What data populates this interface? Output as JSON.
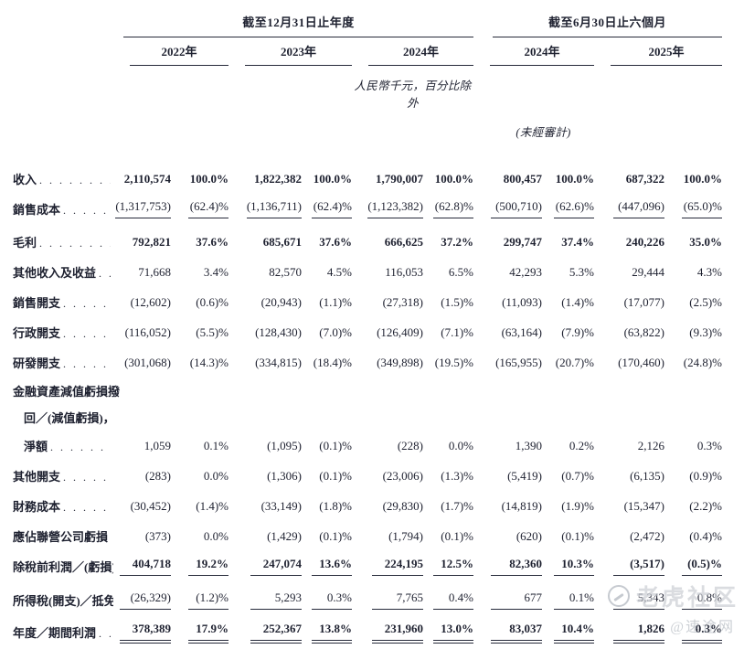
{
  "header": {
    "group1": {
      "title": "截至12月31日止年度",
      "years": [
        "2022年",
        "2023年",
        "2024年"
      ]
    },
    "group2": {
      "title": "截至6月30日止六個月",
      "years": [
        "2024年",
        "2025年"
      ]
    },
    "unit_note": "人民幣千元，百分比除外",
    "unaudited_note": "(未經審計)"
  },
  "table": {
    "leader_dots": ". . . . . . . . . . . . . . . . . . . . . . . . . . . . . . . . . . . . . . . .",
    "rows": [
      {
        "label_lines": [
          "收入"
        ],
        "bold": true,
        "underline": "none",
        "gap": 0,
        "values": [
          "2,110,574",
          "100.0%",
          "1,822,382",
          "100.0%",
          "1,790,007",
          "100.0%",
          "800,457",
          "100.0%",
          "687,322",
          "100.0%"
        ]
      },
      {
        "label_lines": [
          "銷售成本"
        ],
        "bold": false,
        "underline": "single",
        "gap": 0,
        "values": [
          "(1,317,753)",
          "(62.4)%",
          "(1,136,711)",
          "(62.4)%",
          "(1,123,382)",
          "(62.8)%",
          "(500,710)",
          "(62.6)%",
          "(447,096)",
          "(65.0)%"
        ]
      },
      {
        "label_lines": [
          "毛利"
        ],
        "bold": true,
        "underline": "none",
        "gap": 3,
        "values": [
          "792,821",
          "37.6%",
          "685,671",
          "37.6%",
          "666,625",
          "37.2%",
          "299,747",
          "37.4%",
          "240,226",
          "35.0%"
        ]
      },
      {
        "label_lines": [
          "其他收入及收益"
        ],
        "bold": false,
        "underline": "none",
        "gap": 0,
        "values": [
          "71,668",
          "3.4%",
          "82,570",
          "4.5%",
          "116,053",
          "6.5%",
          "42,293",
          "5.3%",
          "29,444",
          "4.3%"
        ]
      },
      {
        "label_lines": [
          "銷售開支"
        ],
        "bold": false,
        "underline": "none",
        "gap": 0,
        "values": [
          "(12,602)",
          "(0.6)%",
          "(20,943)",
          "(1.1)%",
          "(27,318)",
          "(1.5)%",
          "(11,093)",
          "(1.4)%",
          "(17,077)",
          "(2.5)%"
        ]
      },
      {
        "label_lines": [
          "行政開支"
        ],
        "bold": false,
        "underline": "none",
        "gap": 0,
        "values": [
          "(116,052)",
          "(5.5)%",
          "(128,430)",
          "(7.0)%",
          "(126,409)",
          "(7.1)%",
          "(63,164)",
          "(7.9)%",
          "(63,822)",
          "(9.3)%"
        ]
      },
      {
        "label_lines": [
          "研發開支"
        ],
        "bold": false,
        "underline": "none",
        "gap": 0,
        "values": [
          "(301,068)",
          "(14.3)%",
          "(334,815)",
          "(18.4)%",
          "(349,898)",
          "(19.5)%",
          "(165,955)",
          "(20.7)%",
          "(170,460)",
          "(24.8)%"
        ]
      },
      {
        "label_lines": [
          "金融資產減值虧損撥",
          "回／(減值虧損)，",
          "淨額"
        ],
        "bold": false,
        "underline": "none",
        "gap": 0,
        "values": [
          "1,059",
          "0.1%",
          "(1,095)",
          "(0.1)%",
          "(228)",
          "0.0%",
          "1,390",
          "0.2%",
          "2,126",
          "0.3%"
        ]
      },
      {
        "label_lines": [
          "其他開支"
        ],
        "bold": false,
        "underline": "none",
        "gap": 0,
        "values": [
          "(283)",
          "0.0%",
          "(1,306)",
          "(0.1)%",
          "(23,006)",
          "(1.3)%",
          "(5,419)",
          "(0.7)%",
          "(6,135)",
          "(0.9)%"
        ]
      },
      {
        "label_lines": [
          "財務成本"
        ],
        "bold": false,
        "underline": "none",
        "gap": 0,
        "values": [
          "(30,452)",
          "(1.4)%",
          "(33,149)",
          "(1.8)%",
          "(29,830)",
          "(1.7)%",
          "(14,819)",
          "(1.9)%",
          "(15,347)",
          "(2.2)%"
        ]
      },
      {
        "label_lines": [
          "應佔聯營公司虧損"
        ],
        "bold": false,
        "underline": "none",
        "gap": 0,
        "values": [
          "(373)",
          "0.0%",
          "(1,429)",
          "(0.1)%",
          "(1,794)",
          "(0.1)%",
          "(620)",
          "(0.1)%",
          "(2,472)",
          "(0.4)%"
        ]
      },
      {
        "label_lines": [
          "除稅前利潤／(虧損)"
        ],
        "bold": true,
        "underline": "single",
        "gap": 0,
        "values": [
          "404,718",
          "19.2%",
          "247,074",
          "13.6%",
          "224,195",
          "12.5%",
          "82,360",
          "10.3%",
          "(3,517)",
          "(0.5)%"
        ]
      },
      {
        "label_lines": [
          "所得稅(開支)／抵免"
        ],
        "bold": false,
        "underline": "single",
        "gap": 4,
        "values": [
          "(26,329)",
          "(1.2)%",
          "5,293",
          "0.3%",
          "7,765",
          "0.4%",
          "677",
          "0.1%",
          "5,343",
          "0.8%"
        ]
      },
      {
        "label_lines": [
          "年度／期間利潤"
        ],
        "bold": true,
        "underline": "double",
        "gap": 2,
        "values": [
          "378,389",
          "17.9%",
          "252,367",
          "13.8%",
          "231,960",
          "13.0%",
          "83,037",
          "10.4%",
          "1,826",
          "0.3%"
        ]
      }
    ]
  },
  "watermark": {
    "brand": "老虎社区",
    "handle": "@速途网"
  }
}
